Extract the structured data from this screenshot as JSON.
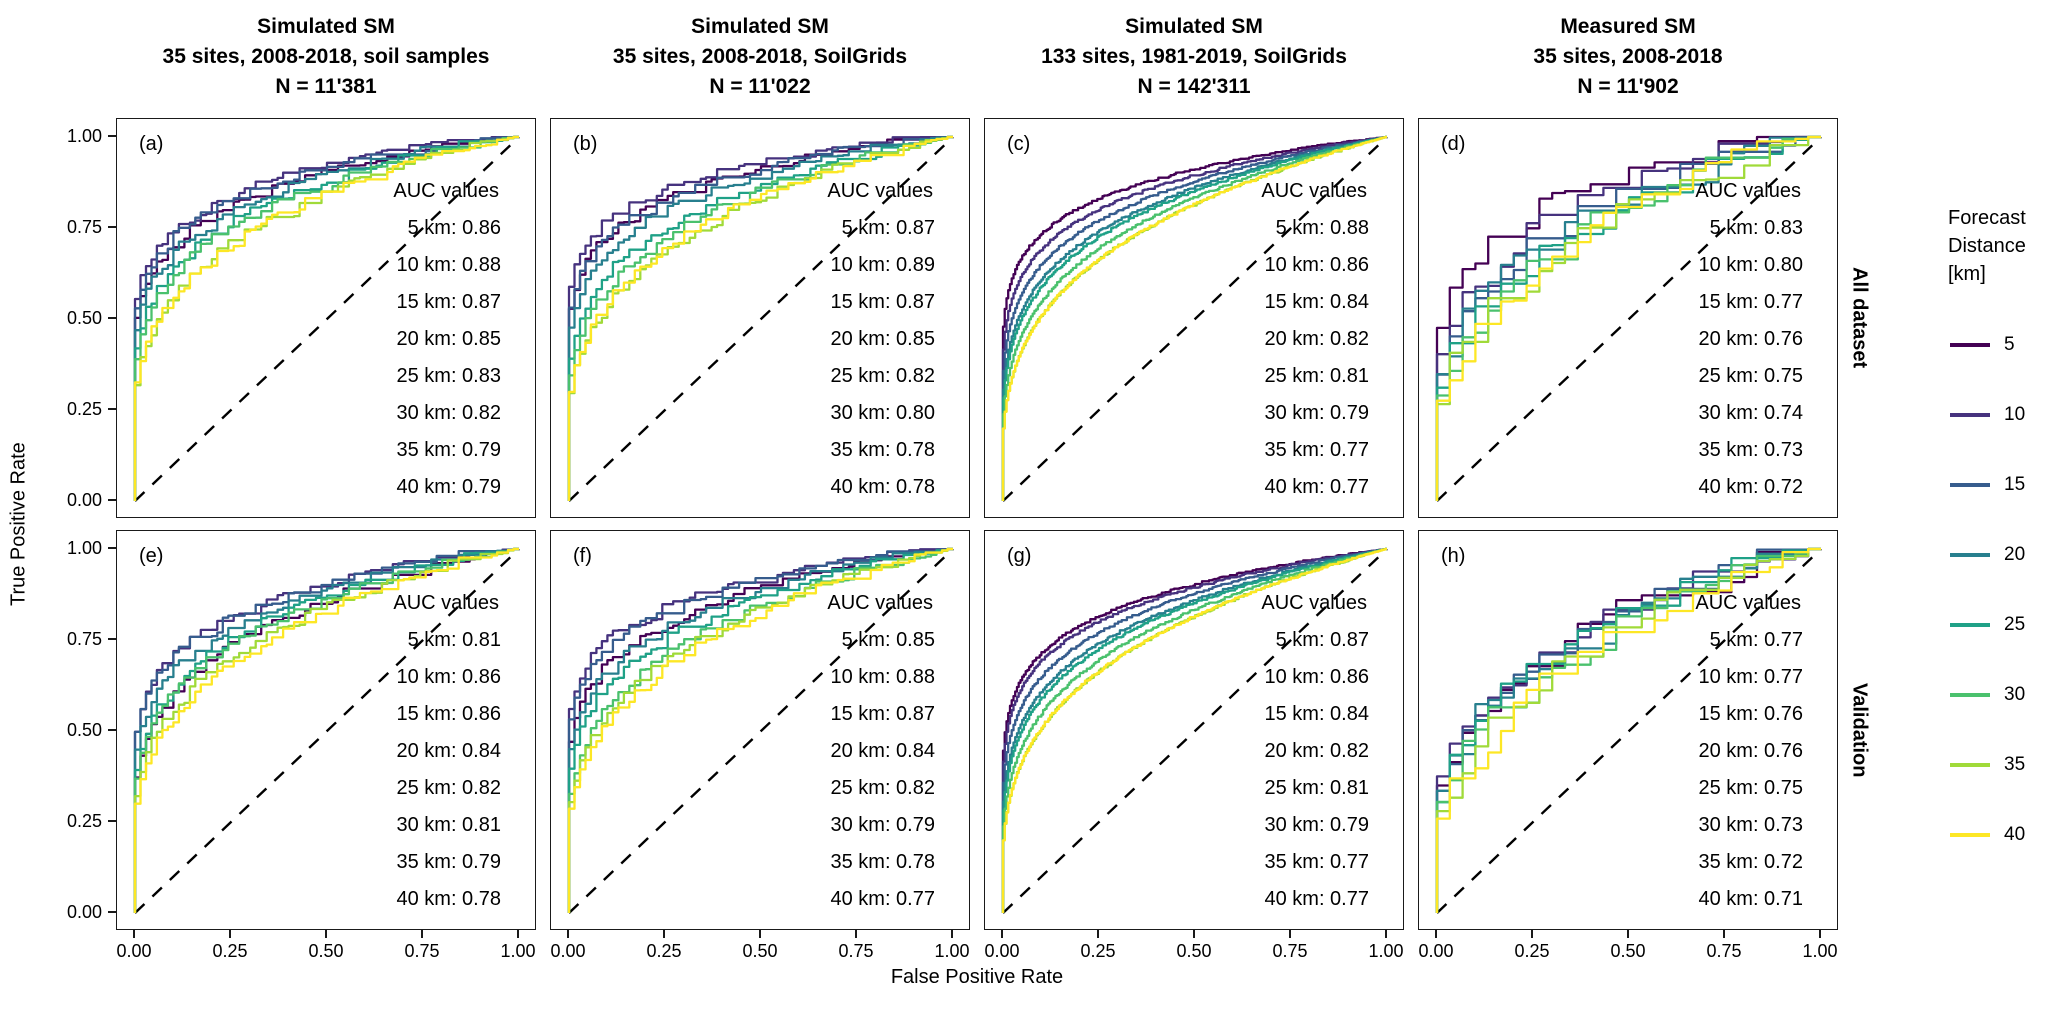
{
  "figure": {
    "x_axis_title": "False Positive Rate",
    "y_axis_title": "True Positive Rate",
    "x_ticks": [
      "0.00",
      "0.25",
      "0.50",
      "0.75",
      "1.00"
    ],
    "y_ticks": [
      "0.00",
      "0.25",
      "0.50",
      "0.75",
      "1.00"
    ],
    "tick_values": [
      0,
      0.25,
      0.5,
      0.75,
      1
    ]
  },
  "legend": {
    "title_lines": [
      "Forecast",
      "Distance",
      "[km]"
    ],
    "entries": [
      {
        "label": "5",
        "color": "#440154"
      },
      {
        "label": "10",
        "color": "#46327e"
      },
      {
        "label": "15",
        "color": "#365c8d"
      },
      {
        "label": "20",
        "color": "#277f8e"
      },
      {
        "label": "25",
        "color": "#1fa187"
      },
      {
        "label": "30",
        "color": "#4ac16d"
      },
      {
        "label": "35",
        "color": "#a0da39"
      },
      {
        "label": "40",
        "color": "#fde725"
      }
    ]
  },
  "chart_data": {
    "type": "line",
    "subtype": "ROC curves (True Positive Rate vs False Positive Rate)",
    "x_label": "False Positive Rate",
    "y_label": "True Positive Rate",
    "x_range": [
      0,
      1
    ],
    "y_range": [
      0,
      1
    ],
    "grid": false,
    "reference_line": "dashed black diagonal y = x (random classifier)",
    "legend_position": "right",
    "series_forecast_distance_km": [
      5,
      10,
      15,
      20,
      25,
      30,
      35,
      40
    ],
    "columns": [
      {
        "title_lines": [
          "Simulated SM",
          "35 sites, 2008-2018, soil samples",
          "N = 11'381"
        ]
      },
      {
        "title_lines": [
          "Simulated SM",
          "35 sites, 2008-2018, SoilGrids",
          "N = 11'022"
        ]
      },
      {
        "title_lines": [
          "Simulated SM",
          "133 sites, 1981-2019, SoilGrids",
          "N = 142'311"
        ]
      },
      {
        "title_lines": [
          "Measured SM",
          "35 sites, 2008-2018",
          "N = 11'902"
        ]
      }
    ],
    "rows": [
      "All dataset",
      "Validation"
    ],
    "auc_header": "AUC values",
    "panels": [
      {
        "tag": "(a)",
        "row": "All dataset",
        "col": 0,
        "auc_by_km": [
          0.86,
          0.88,
          0.87,
          0.85,
          0.83,
          0.82,
          0.79,
          0.79
        ]
      },
      {
        "tag": "(b)",
        "row": "All dataset",
        "col": 1,
        "auc_by_km": [
          0.87,
          0.89,
          0.87,
          0.85,
          0.82,
          0.8,
          0.78,
          0.78
        ]
      },
      {
        "tag": "(c)",
        "row": "All dataset",
        "col": 2,
        "auc_by_km": [
          0.88,
          0.86,
          0.84,
          0.82,
          0.81,
          0.79,
          0.77,
          0.77
        ]
      },
      {
        "tag": "(d)",
        "row": "All dataset",
        "col": 3,
        "auc_by_km": [
          0.83,
          0.8,
          0.77,
          0.76,
          0.75,
          0.74,
          0.73,
          0.72
        ]
      },
      {
        "tag": "(e)",
        "row": "Validation",
        "col": 0,
        "auc_by_km": [
          0.81,
          0.86,
          0.86,
          0.84,
          0.82,
          0.81,
          0.79,
          0.78
        ]
      },
      {
        "tag": "(f)",
        "row": "Validation",
        "col": 1,
        "auc_by_km": [
          0.85,
          0.88,
          0.87,
          0.84,
          0.82,
          0.79,
          0.78,
          0.77
        ]
      },
      {
        "tag": "(g)",
        "row": "Validation",
        "col": 2,
        "auc_by_km": [
          0.87,
          0.86,
          0.84,
          0.82,
          0.81,
          0.79,
          0.77,
          0.77
        ]
      },
      {
        "tag": "(h)",
        "row": "Validation",
        "col": 3,
        "auc_by_km": [
          0.77,
          0.77,
          0.76,
          0.76,
          0.75,
          0.73,
          0.72,
          0.71
        ]
      }
    ]
  }
}
